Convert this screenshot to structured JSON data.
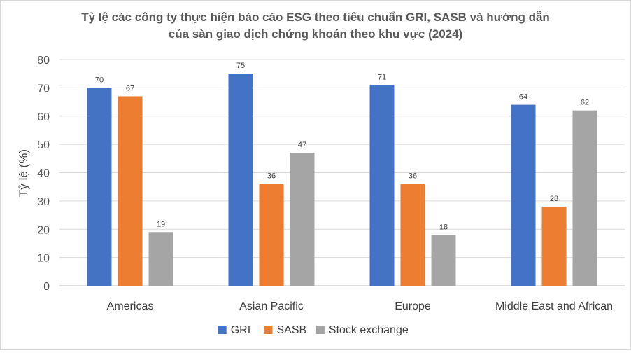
{
  "chart_data": {
    "type": "bar",
    "title_line1": "Tỷ lệ các công ty thực hiện báo cáo ESG theo tiêu chuẩn GRI, SASB và hướng dẫn",
    "title_line2": "của sàn giao dịch chứng khoán theo khu vực (2024)",
    "xlabel": "",
    "ylabel": "Tỷ lệ (%)",
    "ylim": [
      0,
      80
    ],
    "yticks": [
      0,
      10,
      20,
      30,
      40,
      50,
      60,
      70,
      80
    ],
    "grid": true,
    "legend_position": "bottom",
    "categories": [
      "Americas",
      "Asian Pacific",
      "Europe",
      "Middle East and African"
    ],
    "series": [
      {
        "name": "GRI",
        "color": "#4472c4",
        "values": [
          70,
          75,
          71,
          64
        ]
      },
      {
        "name": "SASB",
        "color": "#ed7d31",
        "values": [
          67,
          36,
          36,
          28
        ]
      },
      {
        "name": "Stock exchange",
        "color": "#a5a5a5",
        "values": [
          19,
          47,
          18,
          62
        ]
      }
    ]
  }
}
